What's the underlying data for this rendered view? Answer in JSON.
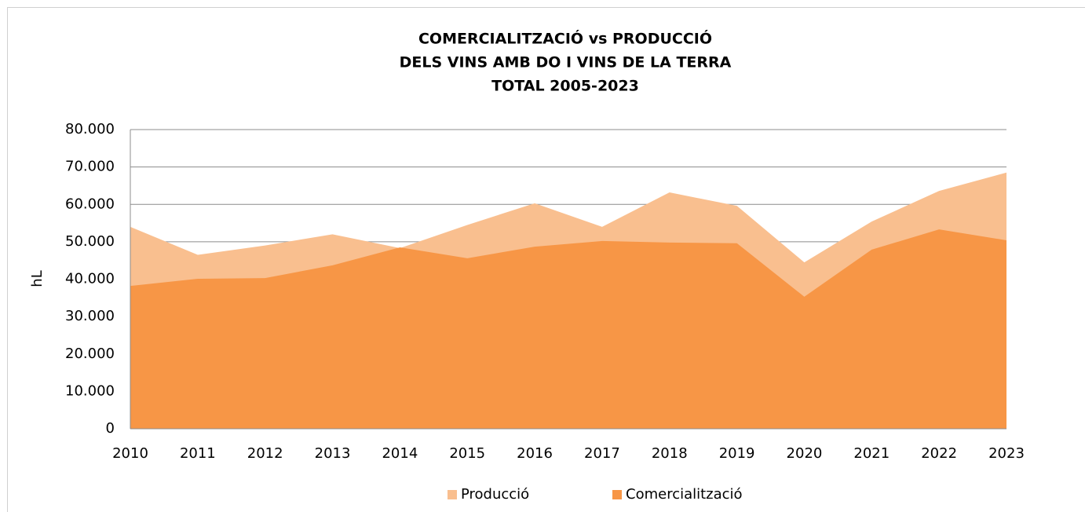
{
  "chart_data": {
    "type": "area",
    "title": [
      "COMERCIALITZACIÓ vs PRODUCCIÓ",
      "DELS VINS AMB DO I VINS DE LA TERRA",
      "TOTAL 2005-2023"
    ],
    "y_label": "hL",
    "categories": [
      "2010",
      "2011",
      "2012",
      "2013",
      "2014",
      "2015",
      "2016",
      "2017",
      "2018",
      "2019",
      "2020",
      "2021",
      "2022",
      "2023"
    ],
    "series": [
      {
        "name": "Producció",
        "color": "#f9bf8f",
        "values": [
          54000,
          46500,
          49000,
          52000,
          48300,
          54500,
          60300,
          54000,
          63200,
          59600,
          44500,
          55400,
          63600,
          68500
        ]
      },
      {
        "name": "Comercialització",
        "color": "#f79646",
        "values": [
          38200,
          40100,
          40300,
          43700,
          48500,
          45600,
          48700,
          50200,
          49800,
          49600,
          35300,
          47900,
          53300,
          50400
        ]
      }
    ],
    "ylim": [
      0,
      80000
    ],
    "yticks": [
      0,
      {
        "value": 10000,
        "label": "10.000"
      },
      {
        "value": 20000,
        "label": "20.000"
      },
      {
        "value": 30000,
        "label": "30.000"
      },
      {
        "value": 40000,
        "label": "40.000"
      },
      {
        "value": 50000,
        "label": "50.000"
      },
      {
        "value": 60000,
        "label": "60.000"
      },
      {
        "value": 70000,
        "label": "70.000"
      },
      {
        "value": 80000,
        "label": "80.000"
      }
    ],
    "grid": true,
    "legend": "bottom"
  }
}
